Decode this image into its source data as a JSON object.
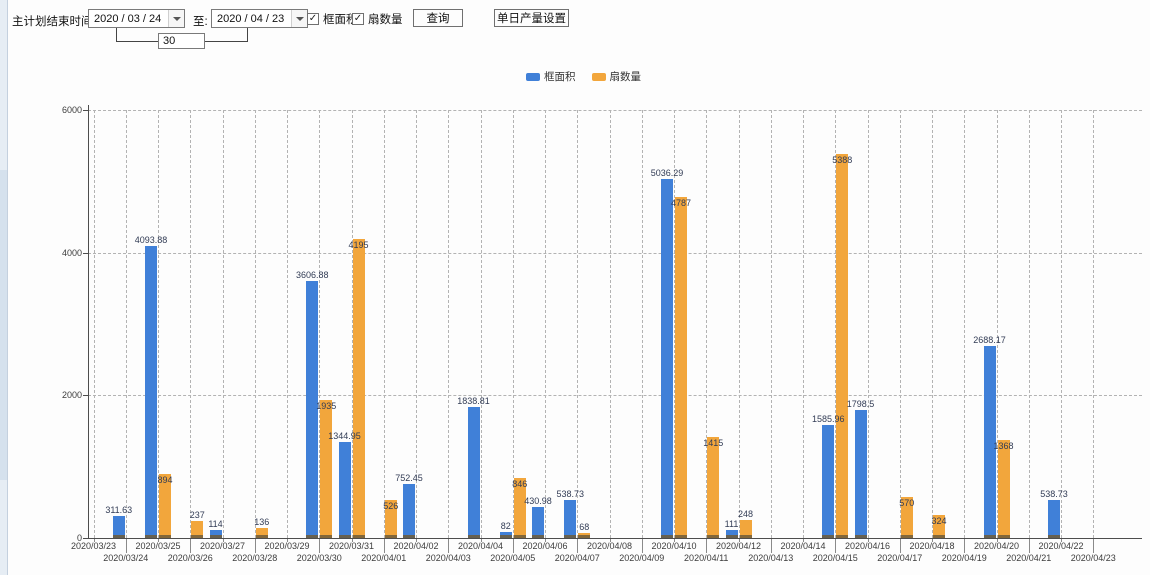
{
  "toolbar": {
    "plan_end_label": "主计划结束时间:",
    "date_from": "2020 / 03 / 24",
    "to_label": "至:",
    "date_to": "2020 / 04 / 23",
    "days_value": "30",
    "checkbox_frame_area": {
      "label": "框面积",
      "checked": true
    },
    "checkbox_fan_count": {
      "label": "扇数量",
      "checked": true
    },
    "query_button": "查询",
    "daily_output_button": "单日产量设置"
  },
  "legend": {
    "items": [
      {
        "label": "框面积",
        "color": "#4080d8"
      },
      {
        "label": "扇数量",
        "color": "#f2a63c"
      }
    ]
  },
  "chart_data": {
    "type": "bar",
    "title": "",
    "xlabel": "",
    "ylabel": "",
    "ylim": [
      0,
      6000
    ],
    "yticks": [
      0,
      2000,
      4000,
      6000
    ],
    "grid": true,
    "legend_position": "top",
    "categories": [
      "2020/03/23",
      "2020/03/24",
      "2020/03/25",
      "2020/03/26",
      "2020/03/27",
      "2020/03/28",
      "2020/03/29",
      "2020/03/30",
      "2020/03/31",
      "2020/04/01",
      "2020/04/02",
      "2020/04/03",
      "2020/04/04",
      "2020/04/05",
      "2020/04/06",
      "2020/04/07",
      "2020/04/08",
      "2020/04/09",
      "2020/04/10",
      "2020/04/11",
      "2020/04/12",
      "2020/04/13",
      "2020/04/14",
      "2020/04/15",
      "2020/04/16",
      "2020/04/17",
      "2020/04/18",
      "2020/04/19",
      "2020/04/20",
      "2020/04/21",
      "2020/04/22",
      "2020/04/23"
    ],
    "series": [
      {
        "name": "框面积",
        "color": "#4080d8",
        "values": [
          null,
          311.63,
          4093.88,
          null,
          114,
          null,
          null,
          3606.88,
          1344.95,
          null,
          752.45,
          null,
          1838.81,
          82,
          430.98,
          538.73,
          null,
          null,
          5036.29,
          null,
          111,
          null,
          null,
          1585.96,
          1798.5,
          null,
          null,
          null,
          2688.17,
          null,
          538.73,
          null
        ]
      },
      {
        "name": "扇数量",
        "color": "#f2a63c",
        "values": [
          null,
          null,
          894,
          237,
          null,
          136,
          null,
          1935,
          4195,
          526,
          null,
          null,
          null,
          846,
          null,
          68,
          null,
          null,
          4787,
          1415,
          248,
          null,
          null,
          5388,
          null,
          570,
          324,
          null,
          1368,
          null,
          null,
          null
        ]
      }
    ]
  }
}
